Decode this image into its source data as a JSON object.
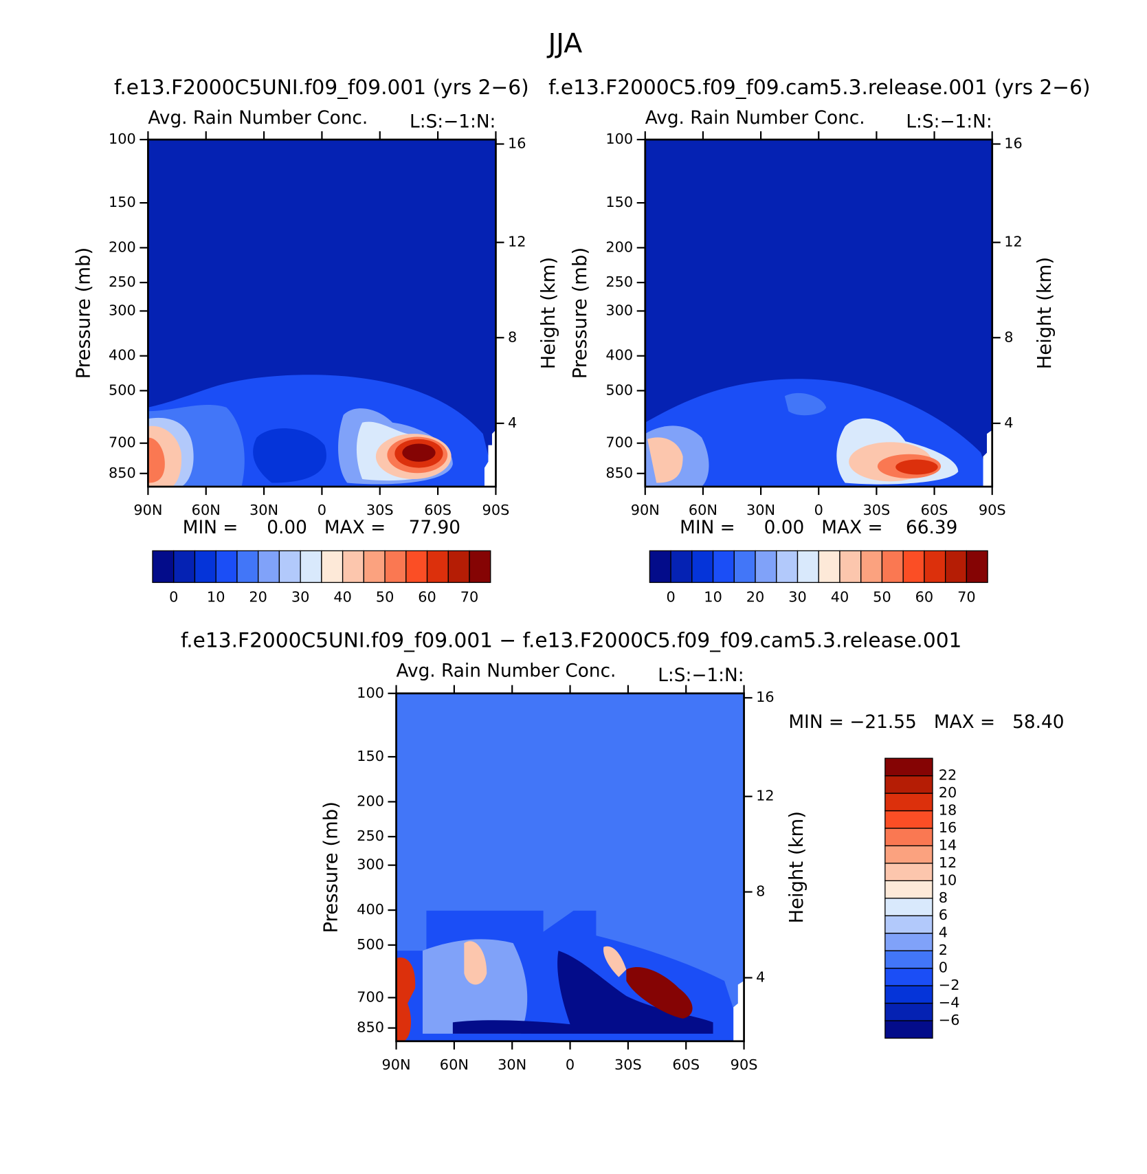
{
  "suptitle": "JJA",
  "chart_data": [
    {
      "type": "contour",
      "title": "f.e13.F2000C5UNI.f09_f09.001 (yrs 2−6)",
      "subtitle": "Avg. Rain Number Conc.",
      "annotation": "L:S:−1:N:",
      "stats": "MIN =     0.00   MAX =    77.90",
      "ylabel": "Pressure (mb)",
      "y2label": "Height (km)",
      "ylog": true,
      "xlim": [
        90,
        -90
      ],
      "xticks": [
        {
          "value": 90,
          "label": "90N"
        },
        {
          "value": 60,
          "label": "60N"
        },
        {
          "value": 30,
          "label": "30N"
        },
        0,
        {
          "value": -30,
          "label": "30S"
        },
        {
          "value": -60,
          "label": "60S"
        },
        {
          "value": -90,
          "label": "90S"
        }
      ],
      "ylim": [
        925,
        100
      ],
      "yticks": [
        100,
        150,
        200,
        250,
        300,
        400,
        500,
        700,
        850
      ],
      "y2ticks": [
        16,
        12,
        8,
        4
      ],
      "levels": [
        0,
        5,
        10,
        15,
        20,
        25,
        30,
        35,
        40,
        45,
        50,
        55,
        60,
        65,
        70
      ],
      "colorbar_ticks": [
        0,
        10,
        20,
        30,
        40,
        50,
        60,
        70
      ],
      "colors": [
        "#030c8a",
        "#0522b3",
        "#0534d9",
        "#1b4ef6",
        "#4276f8",
        "#80a2f9",
        "#b2c9fb",
        "#d9e9fc",
        "#fde9d8",
        "#fcc6ad",
        "#fba27f",
        "#fa7852",
        "#fb4e25",
        "#dc300c",
        "#b51d05",
        "#850404"
      ]
    },
    {
      "type": "contour",
      "title": "f.e13.F2000C5.f09_f09.cam5.3.release.001 (yrs 2−6)",
      "subtitle": "Avg. Rain Number Conc.",
      "annotation": "L:S:−1:N:",
      "stats": "MIN =     0.00   MAX =    66.39",
      "ylabel": "Pressure (mb)",
      "y2label": "Height (km)",
      "ylog": true,
      "xlim": [
        90,
        -90
      ],
      "xticks": [
        {
          "value": 90,
          "label": "90N"
        },
        {
          "value": 60,
          "label": "60N"
        },
        {
          "value": 30,
          "label": "30N"
        },
        0,
        {
          "value": -30,
          "label": "30S"
        },
        {
          "value": -60,
          "label": "60S"
        },
        {
          "value": -90,
          "label": "90S"
        }
      ],
      "ylim": [
        925,
        100
      ],
      "yticks": [
        100,
        150,
        200,
        250,
        300,
        400,
        500,
        700,
        850
      ],
      "y2ticks": [
        16,
        12,
        8,
        4
      ],
      "levels": [
        0,
        5,
        10,
        15,
        20,
        25,
        30,
        35,
        40,
        45,
        50,
        55,
        60,
        65,
        70
      ],
      "colorbar_ticks": [
        0,
        10,
        20,
        30,
        40,
        50,
        60,
        70
      ],
      "colors": [
        "#030c8a",
        "#0522b3",
        "#0534d9",
        "#1b4ef6",
        "#4276f8",
        "#80a2f9",
        "#b2c9fb",
        "#d9e9fc",
        "#fde9d8",
        "#fcc6ad",
        "#fba27f",
        "#fa7852",
        "#fb4e25",
        "#dc300c",
        "#b51d05",
        "#850404"
      ]
    },
    {
      "type": "contour",
      "title": "f.e13.F2000C5UNI.f09_f09.001 − f.e13.F2000C5.f09_f09.cam5.3.release.001",
      "subtitle": "Avg. Rain Number Conc.",
      "annotation": "L:S:−1:N:",
      "stats": "MIN = −21.55   MAX =   58.40",
      "ylabel": "Pressure (mb)",
      "y2label": "Height (km)",
      "ylog": true,
      "xlim": [
        90,
        -90
      ],
      "xticks": [
        {
          "value": 90,
          "label": "90N"
        },
        {
          "value": 60,
          "label": "60N"
        },
        {
          "value": 30,
          "label": "30N"
        },
        0,
        {
          "value": -30,
          "label": "30S"
        },
        {
          "value": -60,
          "label": "60S"
        },
        {
          "value": -90,
          "label": "90S"
        }
      ],
      "ylim": [
        925,
        100
      ],
      "yticks": [
        100,
        150,
        200,
        250,
        300,
        400,
        500,
        700,
        850
      ],
      "y2ticks": [
        16,
        12,
        8,
        4
      ],
      "levels": [
        -6,
        -4,
        -2,
        0,
        2,
        4,
        6,
        8,
        10,
        12,
        14,
        16,
        18,
        20,
        22
      ],
      "colorbar_ticks": [
        {
          "value": -6,
          "label": "−6"
        },
        {
          "value": -4,
          "label": "−4"
        },
        {
          "value": -2,
          "label": "−2"
        },
        0,
        2,
        4,
        6,
        8,
        10,
        12,
        14,
        16,
        18,
        20,
        22
      ],
      "colors": [
        "#030c8a",
        "#0522b3",
        "#0534d9",
        "#1b4ef6",
        "#4276f8",
        "#80a2f9",
        "#b2c9fb",
        "#d9e9fc",
        "#fde9d8",
        "#fcc6ad",
        "#fba27f",
        "#fa7852",
        "#fb4e25",
        "#dc300c",
        "#b51d05",
        "#850404"
      ]
    }
  ]
}
